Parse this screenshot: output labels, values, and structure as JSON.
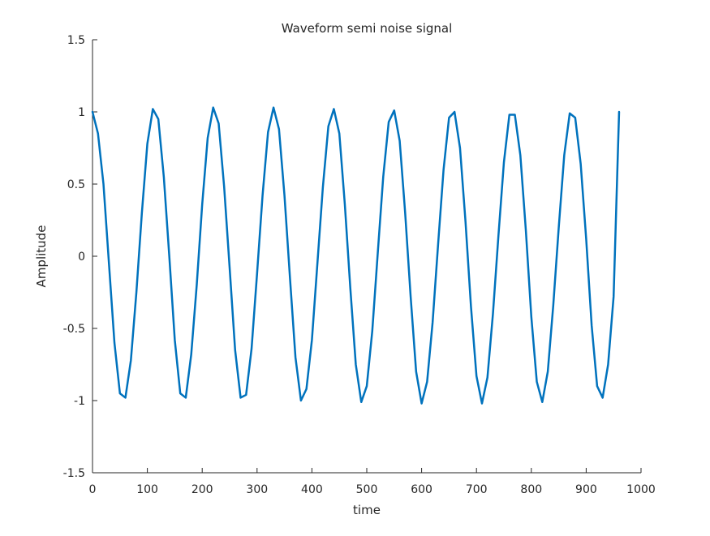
{
  "chart_data": {
    "type": "line",
    "title": "Waveform semi noise signal",
    "xlabel": "time",
    "ylabel": "Amplitude",
    "xlim": [
      0,
      1000
    ],
    "ylim": [
      -1.5,
      1.5
    ],
    "xticks": [
      0,
      100,
      200,
      300,
      400,
      500,
      600,
      700,
      800,
      900,
      1000
    ],
    "yticks": [
      -1.5,
      -1,
      -0.5,
      0,
      0.5,
      1,
      1.5
    ],
    "xtick_labels": [
      "0",
      "100",
      "200",
      "300",
      "400",
      "500",
      "600",
      "700",
      "800",
      "900",
      "1000"
    ],
    "ytick_labels": [
      "-1.5",
      "-1",
      "-0.5",
      "0",
      "0.5",
      "1",
      "1.5"
    ],
    "grid": false,
    "legend": "none",
    "series": [
      {
        "color": "#0072BD",
        "description_of_shape": "cosine wave, amplitude ~1, period ~96.5 samples, 10 cycles, noise on falling edges",
        "x": [
          0,
          10,
          20,
          30,
          40,
          50,
          60,
          70,
          80,
          90,
          100,
          110,
          120,
          130,
          140,
          150,
          160,
          170,
          180,
          190,
          200,
          210,
          220,
          230,
          240,
          250,
          260,
          270,
          280,
          290,
          300,
          310,
          320,
          330,
          340,
          350,
          360,
          370,
          380,
          390,
          400,
          410,
          420,
          430,
          440,
          450,
          460,
          470,
          480,
          490,
          500,
          510,
          520,
          530,
          540,
          550,
          560,
          570,
          580,
          590,
          600,
          610,
          620,
          630,
          640,
          650,
          660,
          670,
          680,
          690,
          700,
          710,
          720,
          730,
          740,
          750,
          760,
          770,
          780,
          790,
          800,
          810,
          820,
          830,
          840,
          850,
          860,
          870,
          880,
          890,
          900,
          910,
          920,
          930,
          940,
          950,
          960
        ],
        "y": [
          1.0,
          0.85,
          0.5,
          -0.05,
          -0.6,
          -0.95,
          -0.98,
          -0.72,
          -0.25,
          0.3,
          0.78,
          1.02,
          0.95,
          0.55,
          0.0,
          -0.58,
          -0.95,
          -0.98,
          -0.68,
          -0.2,
          0.36,
          0.82,
          1.03,
          0.92,
          0.48,
          -0.08,
          -0.65,
          -0.98,
          -0.96,
          -0.64,
          -0.12,
          0.42,
          0.86,
          1.03,
          0.88,
          0.42,
          -0.15,
          -0.7,
          -1.0,
          -0.92,
          -0.58,
          -0.05,
          0.48,
          0.9,
          1.02,
          0.85,
          0.36,
          -0.22,
          -0.75,
          -1.01,
          -0.9,
          -0.52,
          0.02,
          0.55,
          0.93,
          1.01,
          0.8,
          0.3,
          -0.28,
          -0.8,
          -1.02,
          -0.87,
          -0.46,
          0.08,
          0.6,
          0.96,
          1.0,
          0.75,
          0.24,
          -0.35,
          -0.83,
          -1.02,
          -0.84,
          -0.4,
          0.14,
          0.65,
          0.98,
          0.98,
          0.7,
          0.18,
          -0.42,
          -0.87,
          -1.01,
          -0.8,
          -0.34,
          0.2,
          0.7,
          0.99,
          0.96,
          0.64,
          0.12,
          -0.48,
          -0.9,
          -0.98,
          -0.75,
          -0.28,
          1.0
        ]
      }
    ]
  }
}
